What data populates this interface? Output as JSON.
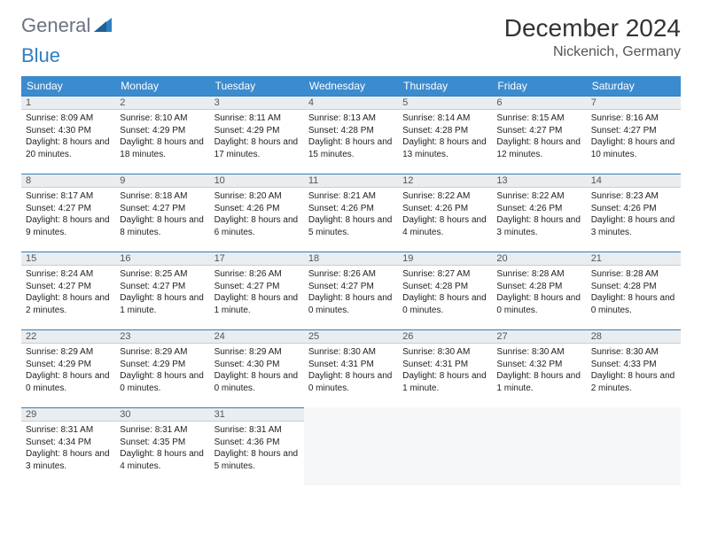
{
  "logo": {
    "general": "General",
    "blue": "Blue"
  },
  "title": "December 2024",
  "location": "Nickenich, Germany",
  "colors": {
    "header_bg": "#3b8bcf",
    "header_text": "#ffffff",
    "daybar_bg": "#e9edf0",
    "daybar_border_top": "#2f7fc1",
    "body_text": "#222222",
    "logo_gray": "#6b7280",
    "logo_blue": "#2f7fc1"
  },
  "weekdays": [
    "Sunday",
    "Monday",
    "Tuesday",
    "Wednesday",
    "Thursday",
    "Friday",
    "Saturday"
  ],
  "weeks": [
    [
      {
        "n": "1",
        "sr": "8:09 AM",
        "ss": "4:30 PM",
        "dl": "8 hours and 20 minutes."
      },
      {
        "n": "2",
        "sr": "8:10 AM",
        "ss": "4:29 PM",
        "dl": "8 hours and 18 minutes."
      },
      {
        "n": "3",
        "sr": "8:11 AM",
        "ss": "4:29 PM",
        "dl": "8 hours and 17 minutes."
      },
      {
        "n": "4",
        "sr": "8:13 AM",
        "ss": "4:28 PM",
        "dl": "8 hours and 15 minutes."
      },
      {
        "n": "5",
        "sr": "8:14 AM",
        "ss": "4:28 PM",
        "dl": "8 hours and 13 minutes."
      },
      {
        "n": "6",
        "sr": "8:15 AM",
        "ss": "4:27 PM",
        "dl": "8 hours and 12 minutes."
      },
      {
        "n": "7",
        "sr": "8:16 AM",
        "ss": "4:27 PM",
        "dl": "8 hours and 10 minutes."
      }
    ],
    [
      {
        "n": "8",
        "sr": "8:17 AM",
        "ss": "4:27 PM",
        "dl": "8 hours and 9 minutes."
      },
      {
        "n": "9",
        "sr": "8:18 AM",
        "ss": "4:27 PM",
        "dl": "8 hours and 8 minutes."
      },
      {
        "n": "10",
        "sr": "8:20 AM",
        "ss": "4:26 PM",
        "dl": "8 hours and 6 minutes."
      },
      {
        "n": "11",
        "sr": "8:21 AM",
        "ss": "4:26 PM",
        "dl": "8 hours and 5 minutes."
      },
      {
        "n": "12",
        "sr": "8:22 AM",
        "ss": "4:26 PM",
        "dl": "8 hours and 4 minutes."
      },
      {
        "n": "13",
        "sr": "8:22 AM",
        "ss": "4:26 PM",
        "dl": "8 hours and 3 minutes."
      },
      {
        "n": "14",
        "sr": "8:23 AM",
        "ss": "4:26 PM",
        "dl": "8 hours and 3 minutes."
      }
    ],
    [
      {
        "n": "15",
        "sr": "8:24 AM",
        "ss": "4:27 PM",
        "dl": "8 hours and 2 minutes."
      },
      {
        "n": "16",
        "sr": "8:25 AM",
        "ss": "4:27 PM",
        "dl": "8 hours and 1 minute."
      },
      {
        "n": "17",
        "sr": "8:26 AM",
        "ss": "4:27 PM",
        "dl": "8 hours and 1 minute."
      },
      {
        "n": "18",
        "sr": "8:26 AM",
        "ss": "4:27 PM",
        "dl": "8 hours and 0 minutes."
      },
      {
        "n": "19",
        "sr": "8:27 AM",
        "ss": "4:28 PM",
        "dl": "8 hours and 0 minutes."
      },
      {
        "n": "20",
        "sr": "8:28 AM",
        "ss": "4:28 PM",
        "dl": "8 hours and 0 minutes."
      },
      {
        "n": "21",
        "sr": "8:28 AM",
        "ss": "4:28 PM",
        "dl": "8 hours and 0 minutes."
      }
    ],
    [
      {
        "n": "22",
        "sr": "8:29 AM",
        "ss": "4:29 PM",
        "dl": "8 hours and 0 minutes."
      },
      {
        "n": "23",
        "sr": "8:29 AM",
        "ss": "4:29 PM",
        "dl": "8 hours and 0 minutes."
      },
      {
        "n": "24",
        "sr": "8:29 AM",
        "ss": "4:30 PM",
        "dl": "8 hours and 0 minutes."
      },
      {
        "n": "25",
        "sr": "8:30 AM",
        "ss": "4:31 PM",
        "dl": "8 hours and 0 minutes."
      },
      {
        "n": "26",
        "sr": "8:30 AM",
        "ss": "4:31 PM",
        "dl": "8 hours and 1 minute."
      },
      {
        "n": "27",
        "sr": "8:30 AM",
        "ss": "4:32 PM",
        "dl": "8 hours and 1 minute."
      },
      {
        "n": "28",
        "sr": "8:30 AM",
        "ss": "4:33 PM",
        "dl": "8 hours and 2 minutes."
      }
    ],
    [
      {
        "n": "29",
        "sr": "8:31 AM",
        "ss": "4:34 PM",
        "dl": "8 hours and 3 minutes."
      },
      {
        "n": "30",
        "sr": "8:31 AM",
        "ss": "4:35 PM",
        "dl": "8 hours and 4 minutes."
      },
      {
        "n": "31",
        "sr": "8:31 AM",
        "ss": "4:36 PM",
        "dl": "8 hours and 5 minutes."
      },
      null,
      null,
      null,
      null
    ]
  ],
  "labels": {
    "sunrise": "Sunrise: ",
    "sunset": "Sunset: ",
    "daylight": "Daylight: "
  }
}
